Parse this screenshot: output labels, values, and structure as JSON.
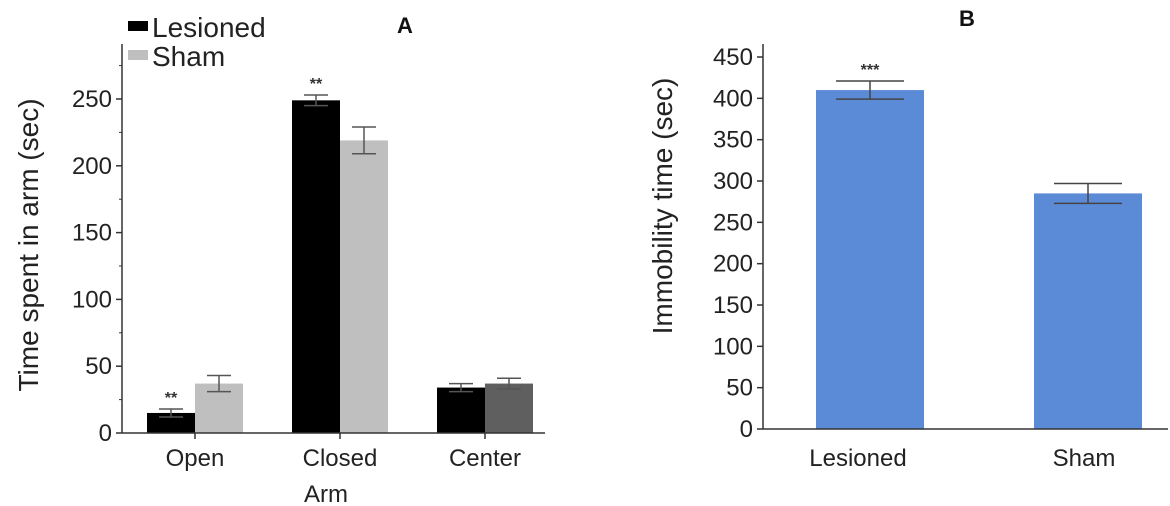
{
  "chart_data": [
    {
      "panel": "A",
      "type": "bar",
      "ylabel": "Time spent in arm (sec)",
      "xlabel": "Arm",
      "categories": [
        "Open",
        "Closed",
        "Center"
      ],
      "ylim": [
        0,
        280
      ],
      "yticks": [
        0,
        50,
        100,
        150,
        200,
        250
      ],
      "series": [
        {
          "name": "Lesioned",
          "color": "#000000",
          "values": [
            15,
            249,
            34
          ],
          "errors": [
            3,
            4,
            3
          ],
          "annotations": [
            "**",
            "**",
            ""
          ]
        },
        {
          "name": "Sham",
          "color": "#bfbfbf",
          "bar_colors": [
            "#bfbfbf",
            "#bfbfbf",
            "#5f5f5f"
          ],
          "values": [
            37,
            219,
            37
          ],
          "errors": [
            6,
            10,
            4
          ],
          "annotations": [
            "",
            "",
            ""
          ]
        }
      ],
      "legend": "top-left",
      "grid": false
    },
    {
      "panel": "B",
      "type": "bar",
      "ylabel": "Immobility time (sec)",
      "categories": [
        "Lesioned",
        "Sham"
      ],
      "ylim": [
        0,
        450
      ],
      "yticks": [
        0,
        50,
        100,
        150,
        200,
        250,
        300,
        350,
        400,
        450
      ],
      "values": [
        410,
        285
      ],
      "errors": [
        11,
        12
      ],
      "annotations": [
        "***",
        ""
      ],
      "color": "#5b8bd6",
      "grid": false
    }
  ]
}
